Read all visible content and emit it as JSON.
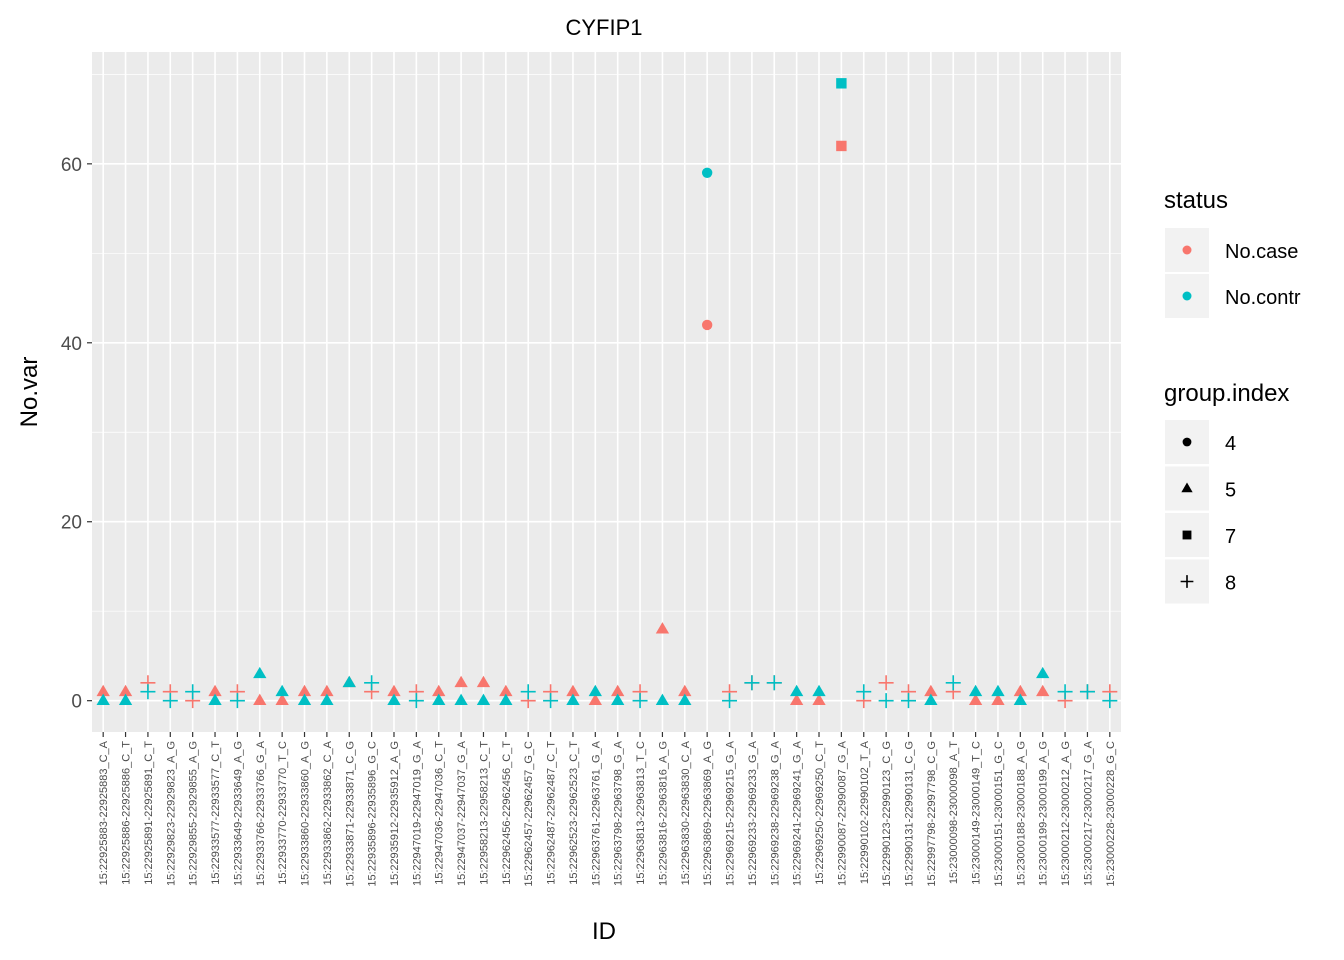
{
  "chart_data": {
    "type": "scatter",
    "title": "CYFIP1",
    "xlabel": "ID",
    "ylabel": "No.var",
    "ylim": [
      -3.5,
      72.5
    ],
    "y_ticks": [
      0,
      20,
      40,
      60
    ],
    "grid": true,
    "legend_position": "right",
    "colors": {
      "No.case": "#F8766D",
      "No.contr": "#00BFC4",
      "panel": "#EBEBEB",
      "grid": "#FFFFFF"
    },
    "legends": {
      "status": {
        "title": "status",
        "entries": [
          "No.case",
          "No.contr"
        ]
      },
      "group": {
        "title": "group.index",
        "entries": [
          "4",
          "5",
          "7",
          "8"
        ]
      }
    },
    "shape_map": {
      "4": "circle",
      "5": "triangle",
      "7": "square",
      "8": "plus"
    },
    "categories": [
      "15:22925883-22925883_C_A",
      "15:22925886-22925886_C_T",
      "15:22925891-22925891_C_T",
      "15:22929823-22929823_A_G",
      "15:22929855-22929855_A_G",
      "15:22933577-22933577_C_T",
      "15:22933649-22933649_A_G",
      "15:22933766-22933766_G_A",
      "15:22933770-22933770_T_C",
      "15:22933860-22933860_A_G",
      "15:22933862-22933862_C_A",
      "15:22933871-22933871_C_G",
      "15:22935896-22935896_G_C",
      "15:22935912-22935912_A_G",
      "15:22947019-22947019_G_A",
      "15:22947036-22947036_C_T",
      "15:22947037-22947037_G_A",
      "15:22958213-22958213_C_T",
      "15:22962456-22962456_C_T",
      "15:22962457-22962457_G_C",
      "15:22962487-22962487_C_T",
      "15:22962523-22962523_C_T",
      "15:22963761-22963761_G_A",
      "15:22963798-22963798_G_A",
      "15:22963813-22963813_T_C",
      "15:22963816-22963816_A_G",
      "15:22963830-22963830_C_A",
      "15:22963869-22963869_A_G",
      "15:22969215-22969215_G_A",
      "15:22969233-22969233_G_A",
      "15:22969238-22969238_G_A",
      "15:22969241-22969241_G_A",
      "15:22969250-22969250_C_T",
      "15:22990087-22990087_G_A",
      "15:22990102-22990102_T_A",
      "15:22990123-22990123_C_G",
      "15:22990131-22990131_C_G",
      "15:22997798-22997798_C_G",
      "15:23000098-23000098_A_T",
      "15:23000149-23000149_T_C",
      "15:23000151-23000151_G_C",
      "15:23000188-23000188_A_G",
      "15:23000199-23000199_A_G",
      "15:23000212-23000212_A_G",
      "15:23000217-23000217_G_A",
      "15:23000228-23000228_G_C"
    ],
    "group_index": [
      5,
      5,
      8,
      8,
      8,
      5,
      8,
      5,
      5,
      5,
      5,
      5,
      8,
      5,
      8,
      5,
      5,
      5,
      5,
      8,
      8,
      5,
      5,
      5,
      8,
      5,
      5,
      4,
      8,
      8,
      8,
      5,
      5,
      7,
      8,
      8,
      8,
      5,
      8,
      5,
      5,
      5,
      5,
      8,
      8,
      8
    ],
    "series": [
      {
        "name": "No.case",
        "values": [
          1,
          1,
          2,
          1,
          0,
          1,
          1,
          0,
          0,
          1,
          1,
          2,
          1,
          1,
          1,
          1,
          2,
          2,
          1,
          0,
          1,
          1,
          0,
          1,
          1,
          8,
          1,
          42,
          1,
          2,
          2,
          0,
          0,
          62,
          0,
          2,
          1,
          1,
          1,
          0,
          0,
          1,
          1,
          0,
          1,
          1
        ]
      },
      {
        "name": "No.contr",
        "values": [
          0,
          0,
          1,
          0,
          1,
          0,
          0,
          3,
          1,
          0,
          0,
          2,
          2,
          0,
          0,
          0,
          0,
          0,
          0,
          1,
          0,
          0,
          1,
          0,
          0,
          0,
          0,
          59,
          0,
          2,
          2,
          1,
          1,
          69,
          1,
          0,
          0,
          0,
          2,
          1,
          1,
          0,
          3,
          1,
          1,
          0
        ]
      }
    ]
  }
}
